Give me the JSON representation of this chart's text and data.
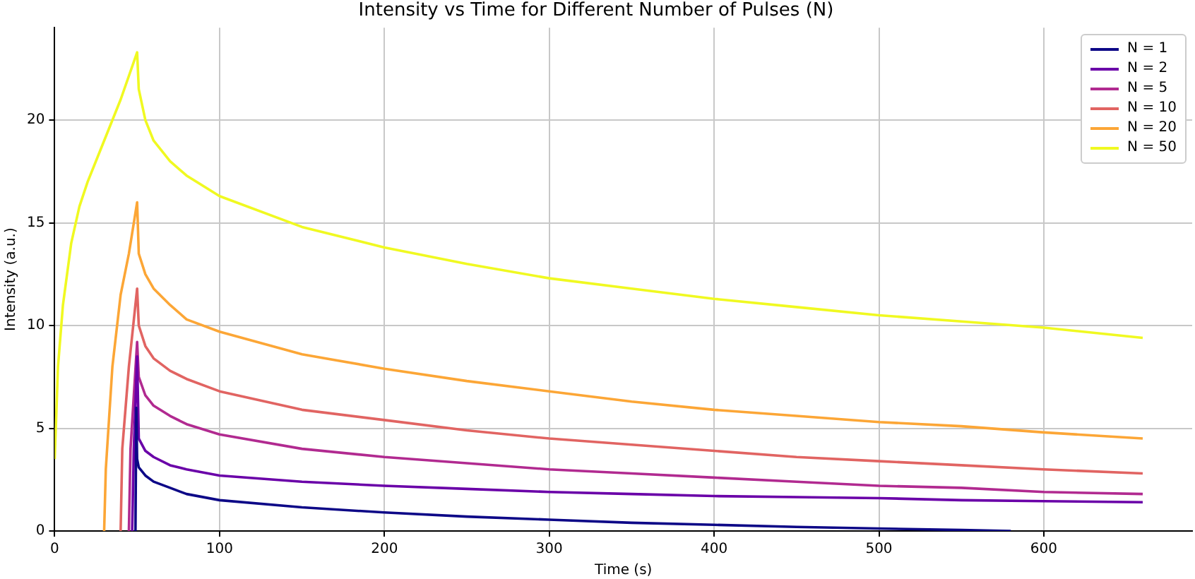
{
  "chart_data": {
    "type": "line",
    "title": "Intensity vs Time for Different Number of Pulses (N)",
    "xlabel": "Time (s)",
    "ylabel": "Intensity (a.u.)",
    "xlim": [
      0,
      690
    ],
    "ylim": [
      0,
      24.5
    ],
    "xticks": [
      0,
      100,
      200,
      300,
      400,
      500,
      600
    ],
    "yticks": [
      0,
      5,
      10,
      15,
      20
    ],
    "grid": true,
    "legend": "top right",
    "marker": "none",
    "line_style": "solid",
    "series": [
      {
        "name": "N = 1",
        "color": "#0d0887",
        "x": [
          49,
          49.5,
          50,
          51,
          55,
          60,
          70,
          80,
          100,
          150,
          200,
          250,
          300,
          350,
          400,
          450,
          500,
          550,
          580
        ],
        "values": [
          0,
          6,
          3.5,
          3.1,
          2.7,
          2.4,
          2.1,
          1.8,
          1.5,
          1.15,
          0.9,
          0.7,
          0.55,
          0.4,
          0.3,
          0.2,
          0.12,
          0.05,
          0
        ]
      },
      {
        "name": "N = 2",
        "color": "#6a00a8",
        "x": [
          47,
          48,
          50,
          51,
          55,
          60,
          70,
          80,
          100,
          150,
          200,
          250,
          300,
          350,
          400,
          450,
          500,
          550,
          600,
          660
        ],
        "values": [
          0,
          4,
          8.5,
          4.5,
          3.9,
          3.6,
          3.2,
          3.0,
          2.7,
          2.4,
          2.2,
          2.05,
          1.9,
          1.8,
          1.7,
          1.65,
          1.6,
          1.5,
          1.45,
          1.4
        ]
      },
      {
        "name": "N = 5",
        "color": "#b12a90",
        "x": [
          45,
          46,
          50,
          51,
          55,
          60,
          70,
          80,
          100,
          150,
          200,
          250,
          300,
          350,
          400,
          450,
          500,
          550,
          600,
          660
        ],
        "values": [
          0,
          4,
          9.2,
          7.5,
          6.6,
          6.1,
          5.6,
          5.2,
          4.7,
          4.0,
          3.6,
          3.3,
          3.0,
          2.8,
          2.6,
          2.4,
          2.2,
          2.1,
          1.9,
          1.8
        ]
      },
      {
        "name": "N = 10",
        "color": "#e16462",
        "x": [
          40,
          41,
          45,
          50,
          51,
          55,
          60,
          70,
          80,
          100,
          150,
          200,
          250,
          300,
          350,
          400,
          450,
          500,
          550,
          600,
          660
        ],
        "values": [
          0,
          4,
          8,
          11.8,
          10,
          9,
          8.4,
          7.8,
          7.4,
          6.8,
          5.9,
          5.4,
          4.9,
          4.5,
          4.2,
          3.9,
          3.6,
          3.4,
          3.2,
          3.0,
          2.8
        ]
      },
      {
        "name": "N = 20",
        "color": "#fca636",
        "x": [
          30,
          31,
          35,
          40,
          45,
          50,
          51,
          55,
          60,
          70,
          80,
          100,
          150,
          200,
          250,
          300,
          350,
          400,
          450,
          500,
          550,
          600,
          660
        ],
        "values": [
          0,
          3,
          8,
          11.5,
          13.5,
          16,
          13.5,
          12.5,
          11.8,
          11,
          10.3,
          9.7,
          8.6,
          7.9,
          7.3,
          6.8,
          6.3,
          5.9,
          5.6,
          5.3,
          5.1,
          4.8,
          4.5
        ]
      },
      {
        "name": "N = 50",
        "color": "#f0f921",
        "x": [
          0,
          2,
          5,
          10,
          15,
          20,
          30,
          40,
          50,
          51,
          55,
          60,
          70,
          80,
          100,
          150,
          200,
          250,
          300,
          350,
          400,
          450,
          500,
          550,
          600,
          660
        ],
        "values": [
          3.5,
          8,
          11,
          14,
          15.8,
          17,
          19,
          21,
          23.3,
          21.5,
          20,
          19,
          18,
          17.3,
          16.3,
          14.8,
          13.8,
          13.0,
          12.3,
          11.8,
          11.3,
          10.9,
          10.5,
          10.2,
          9.9,
          9.4
        ]
      }
    ]
  }
}
